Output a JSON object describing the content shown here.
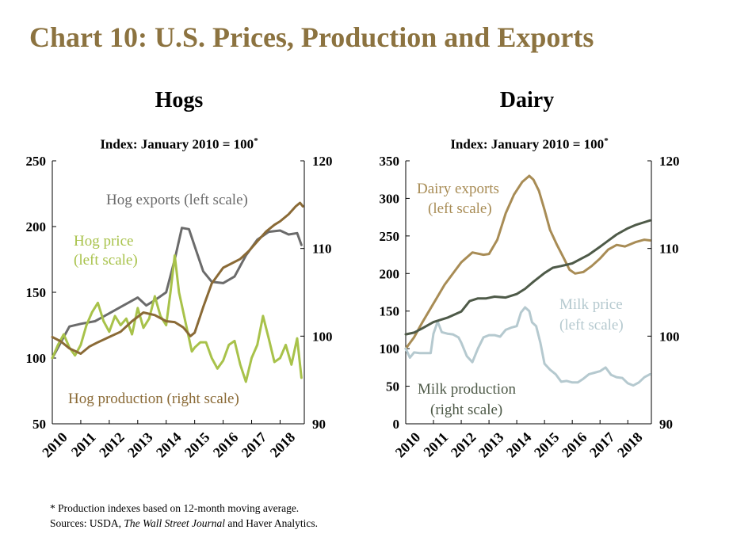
{
  "title": "Chart 10: U.S. Prices, Production and Exports",
  "colors": {
    "title": "#8c7340",
    "hog_exports": "#6b6b6b",
    "hog_price": "#a8c24a",
    "hog_production": "#8a6a36",
    "dairy_exports": "#a88c55",
    "milk_price": "#b5c9cf",
    "milk_production": "#4e5a48"
  },
  "footnotes": {
    "note": "* Production indexes based on 12-month moving average.",
    "sources_prefix": "Sources: USDA, ",
    "sources_italic": "The Wall Street Journal",
    "sources_suffix": " and Haver Analytics."
  },
  "chart_data": [
    {
      "type": "line",
      "title": "Hogs",
      "subtitle": "Index: January 2010 = 100",
      "subtitle_mark": "*",
      "x_ticks": [
        "2010",
        "2011",
        "2012",
        "2013",
        "2014",
        "2015",
        "2016",
        "2017",
        "2018"
      ],
      "xlim": [
        2010,
        2018.85
      ],
      "y_left": {
        "lim": [
          50,
          250
        ],
        "ticks": [
          "50",
          "100",
          "150",
          "200",
          "250"
        ]
      },
      "y_right": {
        "lim": [
          90,
          120
        ],
        "ticks": [
          "90",
          "100",
          "110",
          "120"
        ]
      },
      "grid": false,
      "series": [
        {
          "name": "Hog exports (left scale)",
          "axis": "left",
          "color_key": "hog_exports",
          "x": [
            2010,
            2010.3,
            2010.6,
            2011,
            2011.5,
            2012,
            2012.5,
            2013,
            2013.3,
            2013.6,
            2014,
            2014.3,
            2014.55,
            2014.8,
            2015,
            2015.3,
            2015.6,
            2016,
            2016.4,
            2016.8,
            2017.2,
            2017.6,
            2018,
            2018.3,
            2018.6,
            2018.75
          ],
          "y": [
            100,
            112,
            124,
            126,
            128,
            134,
            140,
            146,
            140,
            144,
            150,
            175,
            199,
            198,
            185,
            166,
            158,
            157,
            162,
            178,
            190,
            196,
            197,
            194,
            195,
            186
          ]
        },
        {
          "name": "Hog price (left scale)",
          "axis": "left",
          "color_key": "hog_price",
          "x": [
            2010,
            2010.2,
            2010.4,
            2010.6,
            2010.8,
            2011,
            2011.2,
            2011.4,
            2011.6,
            2011.8,
            2012,
            2012.2,
            2012.4,
            2012.6,
            2012.8,
            2013,
            2013.2,
            2013.4,
            2013.6,
            2013.8,
            2014,
            2014.15,
            2014.3,
            2014.45,
            2014.6,
            2014.75,
            2014.9,
            2015,
            2015.2,
            2015.4,
            2015.6,
            2015.8,
            2016,
            2016.2,
            2016.4,
            2016.6,
            2016.8,
            2017,
            2017.2,
            2017.4,
            2017.6,
            2017.8,
            2018,
            2018.2,
            2018.4,
            2018.6,
            2018.75
          ],
          "y": [
            100,
            110,
            118,
            108,
            102,
            110,
            125,
            135,
            142,
            128,
            120,
            132,
            125,
            130,
            118,
            138,
            123,
            130,
            147,
            132,
            125,
            150,
            178,
            150,
            135,
            120,
            105,
            108,
            112,
            112,
            100,
            92,
            98,
            110,
            113,
            95,
            82,
            100,
            110,
            132,
            115,
            97,
            100,
            110,
            95,
            115,
            85
          ]
        },
        {
          "name": "Hog production (right scale)",
          "axis": "right",
          "color_key": "hog_production",
          "x": [
            2010,
            2010.3,
            2010.6,
            2011,
            2011.3,
            2011.6,
            2012,
            2012.4,
            2012.8,
            2013.2,
            2013.6,
            2014,
            2014.3,
            2014.6,
            2014.85,
            2015,
            2015.3,
            2015.6,
            2016,
            2016.3,
            2016.6,
            2016.9,
            2017.2,
            2017.5,
            2017.8,
            2018,
            2018.3,
            2018.55,
            2018.7,
            2018.8
          ],
          "y": [
            99.9,
            99.4,
            98.6,
            98.0,
            98.8,
            99.3,
            99.9,
            100.5,
            101.7,
            102.7,
            102.4,
            101.7,
            101.6,
            101.0,
            100.0,
            100.4,
            103.3,
            106.0,
            107.8,
            108.3,
            108.8,
            109.7,
            110.8,
            111.9,
            112.7,
            113.1,
            113.9,
            114.8,
            115.2,
            114.8
          ]
        }
      ],
      "annotations": [
        "Hog exports (left scale)",
        "Hog price",
        "(left scale)",
        "Hog production (right scale)"
      ]
    },
    {
      "type": "line",
      "title": "Dairy",
      "subtitle": "Index: January 2010 = 100",
      "subtitle_mark": "*",
      "x_ticks": [
        "2010",
        "2011",
        "2012",
        "2013",
        "2014",
        "2015",
        "2016",
        "2017",
        "2018"
      ],
      "xlim": [
        2010,
        2018.85
      ],
      "y_left": {
        "lim": [
          0,
          350
        ],
        "ticks": [
          "0",
          "50",
          "100",
          "150",
          "200",
          "250",
          "300",
          "350"
        ]
      },
      "y_right": {
        "lim": [
          90,
          120
        ],
        "ticks": [
          "90",
          "100",
          "110",
          "120"
        ]
      },
      "grid": false,
      "series": [
        {
          "name": "Dairy exports (left scale)",
          "axis": "left",
          "color_key": "dairy_exports",
          "x": [
            2010,
            2010.3,
            2010.6,
            2011,
            2011.4,
            2011.8,
            2012,
            2012.4,
            2012.8,
            2013,
            2013.3,
            2013.6,
            2013.9,
            2014.2,
            2014.45,
            2014.6,
            2014.8,
            2015,
            2015.2,
            2015.45,
            2015.7,
            2015.9,
            2016.1,
            2016.4,
            2016.7,
            2017,
            2017.3,
            2017.6,
            2017.9,
            2018.3,
            2018.6,
            2018.8
          ],
          "y": [
            100,
            115,
            135,
            160,
            185,
            205,
            215,
            228,
            225,
            226,
            245,
            280,
            305,
            322,
            330,
            325,
            310,
            285,
            258,
            238,
            220,
            205,
            200,
            202,
            210,
            220,
            232,
            238,
            236,
            242,
            245,
            244
          ]
        },
        {
          "name": "Milk price (left scale)",
          "axis": "left",
          "color_key": "milk_price",
          "x": [
            2010,
            2010.15,
            2010.3,
            2010.5,
            2010.7,
            2010.9,
            2011,
            2011.15,
            2011.3,
            2011.5,
            2011.7,
            2011.9,
            2012,
            2012.2,
            2012.4,
            2012.6,
            2012.8,
            2013,
            2013.2,
            2013.4,
            2013.6,
            2013.8,
            2014,
            2014.15,
            2014.3,
            2014.45,
            2014.55,
            2014.7,
            2014.85,
            2015,
            2015.2,
            2015.4,
            2015.6,
            2015.8,
            2016,
            2016.2,
            2016.4,
            2016.6,
            2016.8,
            2017,
            2017.2,
            2017.4,
            2017.6,
            2017.8,
            2018,
            2018.2,
            2018.4,
            2018.6,
            2018.8
          ],
          "y": [
            100,
            88,
            95,
            94,
            94,
            94,
            120,
            136,
            122,
            120,
            119,
            115,
            108,
            90,
            82,
            100,
            115,
            118,
            118,
            116,
            125,
            128,
            130,
            148,
            155,
            150,
            135,
            130,
            108,
            80,
            72,
            66,
            56,
            57,
            55,
            55,
            60,
            66,
            68,
            70,
            75,
            65,
            62,
            61,
            54,
            51,
            55,
            62,
            66
          ]
        },
        {
          "name": "Milk production (right scale)",
          "axis": "right",
          "color_key": "milk_production",
          "x": [
            2010,
            2010.3,
            2010.6,
            2011,
            2011.5,
            2012,
            2012.3,
            2012.6,
            2012.9,
            2013.2,
            2013.6,
            2014,
            2014.3,
            2014.6,
            2015,
            2015.3,
            2015.6,
            2016,
            2016.3,
            2016.6,
            2017,
            2017.3,
            2017.6,
            2018,
            2018.3,
            2018.6,
            2018.8
          ],
          "y": [
            100.2,
            100.4,
            100.9,
            101.6,
            102.1,
            102.8,
            104.0,
            104.3,
            104.3,
            104.5,
            104.4,
            104.8,
            105.4,
            106.2,
            107.2,
            107.8,
            108.0,
            108.3,
            108.8,
            109.3,
            110.2,
            110.9,
            111.6,
            112.3,
            112.7,
            113.0,
            113.2
          ]
        }
      ],
      "annotations": [
        "Dairy exports",
        "(left scale)",
        "Milk price",
        "(left scale)",
        "Milk production",
        "(right scale)"
      ]
    }
  ]
}
